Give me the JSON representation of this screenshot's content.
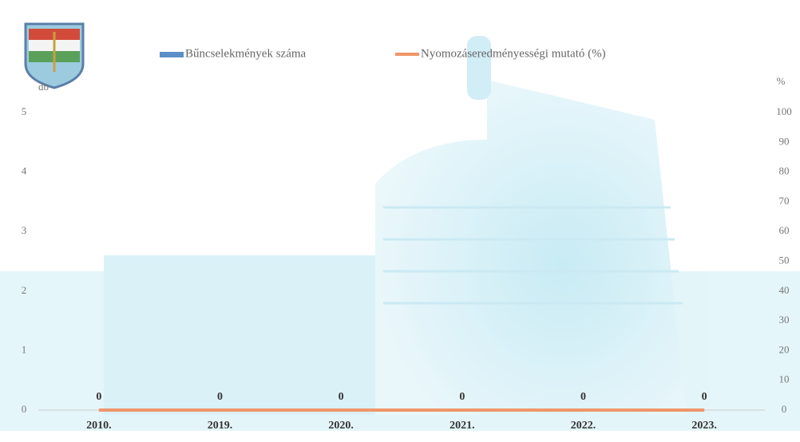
{
  "chart_data": {
    "type": "bar",
    "categories": [
      "2010.",
      "2019.",
      "2020.",
      "2021.",
      "2022.",
      "2023."
    ],
    "series": [
      {
        "name": "Bűncselekmények száma",
        "color": "#5b8fc7",
        "type": "bar",
        "values": [
          0,
          0,
          0,
          0,
          0,
          0
        ]
      },
      {
        "name": "Nyomozáseredményességi mutató (%)",
        "color": "#f0956a",
        "type": "line",
        "axis": "y2",
        "values": [
          0,
          0,
          0,
          0,
          0,
          0
        ]
      }
    ],
    "y_label": "db",
    "y2_label": "%",
    "ylim": [
      0,
      5
    ],
    "yticks": [
      0,
      1,
      2,
      3,
      4,
      5
    ],
    "y2lim": [
      0,
      100
    ],
    "y2ticks": [
      0,
      10,
      20,
      30,
      40,
      50,
      60,
      70,
      80,
      90,
      100
    ],
    "grid": false
  }
}
